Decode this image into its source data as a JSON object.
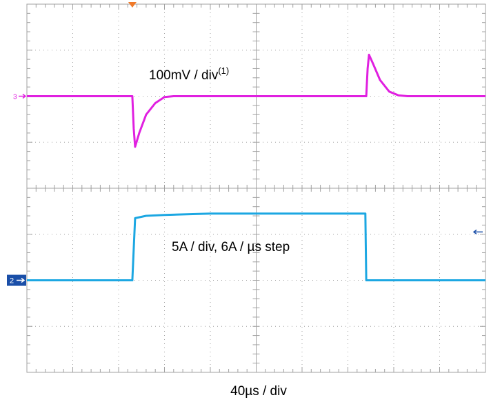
{
  "chart_data": {
    "type": "line",
    "title": "",
    "grid": true,
    "divisions": {
      "x": 10,
      "y": 8
    },
    "xlabel": "40µs / div",
    "x_units": "div",
    "xlim": [
      0,
      10
    ],
    "ylim": [
      -4,
      4
    ],
    "trigger_marker_x_div": 2.3,
    "series": [
      {
        "channel": "3",
        "label": "100mV / div",
        "label_superscript": "(1)",
        "color": "#e020e0",
        "ground_level_div": 2.0,
        "points": [
          [
            0,
            2.0
          ],
          [
            2.3,
            2.0
          ],
          [
            2.33,
            1.3
          ],
          [
            2.36,
            0.9
          ],
          [
            2.45,
            1.2
          ],
          [
            2.6,
            1.6
          ],
          [
            2.8,
            1.85
          ],
          [
            3.0,
            1.98
          ],
          [
            3.2,
            2.0
          ],
          [
            7.4,
            2.0
          ],
          [
            7.43,
            2.6
          ],
          [
            7.46,
            2.9
          ],
          [
            7.55,
            2.7
          ],
          [
            7.7,
            2.35
          ],
          [
            7.9,
            2.1
          ],
          [
            8.1,
            2.02
          ],
          [
            8.3,
            2.0
          ],
          [
            10,
            2.0
          ]
        ]
      },
      {
        "channel": "2",
        "label": "5A / div, 6A / µs step",
        "color": "#1ca7e2",
        "ground_level_div": -2.0,
        "points": [
          [
            0,
            -2.0
          ],
          [
            2.3,
            -2.0
          ],
          [
            2.36,
            -0.65
          ],
          [
            2.6,
            -0.6
          ],
          [
            3.0,
            -0.58
          ],
          [
            4.0,
            -0.55
          ],
          [
            5.0,
            -0.55
          ],
          [
            7.38,
            -0.55
          ],
          [
            7.4,
            -2.0
          ],
          [
            10,
            -2.0
          ]
        ]
      }
    ],
    "ch2_ref_arrow_y_div": -0.95
  }
}
